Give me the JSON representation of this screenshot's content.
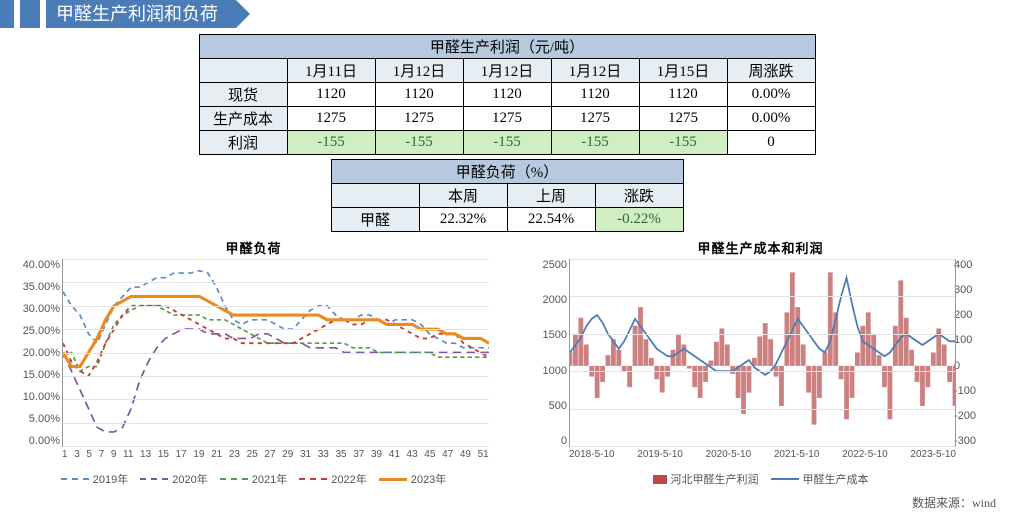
{
  "banner": {
    "title": "甲醛生产利润和负荷"
  },
  "table_profit": {
    "title": "甲醛生产利润（元/吨）",
    "date_headers": [
      "1月11日",
      "1月12日",
      "1月12日",
      "1月12日",
      "1月15日",
      "周涨跌"
    ],
    "rows": [
      {
        "label": "现货",
        "cells": [
          "1120",
          "1120",
          "1120",
          "1120",
          "1120",
          "0.00%"
        ],
        "green": [
          false,
          false,
          false,
          false,
          false,
          false
        ]
      },
      {
        "label": "生产成本",
        "cells": [
          "1275",
          "1275",
          "1275",
          "1275",
          "1275",
          "0.00%"
        ],
        "green": [
          false,
          false,
          false,
          false,
          false,
          false
        ]
      },
      {
        "label": "利润",
        "cells": [
          "-155",
          "-155",
          "-155",
          "-155",
          "-155",
          "0"
        ],
        "green": [
          true,
          true,
          true,
          true,
          true,
          false
        ]
      }
    ]
  },
  "table_load": {
    "title": "甲醛负荷（%）",
    "col_headers": [
      "本周",
      "上周",
      "涨跌"
    ],
    "row": {
      "label": "甲醛",
      "cells": [
        "22.32%",
        "22.54%",
        "-0.22%"
      ],
      "green": [
        false,
        false,
        true
      ]
    }
  },
  "chart_load": {
    "title": "甲醛负荷",
    "type": "line",
    "y_ticks_pct": [
      40,
      35,
      30,
      25,
      20,
      15,
      10,
      5,
      0
    ],
    "x_ticks": [
      "1",
      "3",
      "5",
      "7",
      "9",
      "11",
      "13",
      "15",
      "17",
      "19",
      "21",
      "23",
      "25",
      "27",
      "29",
      "31",
      "33",
      "35",
      "37",
      "39",
      "41",
      "43",
      "45",
      "47",
      "49",
      "51"
    ],
    "ylim": [
      0,
      40
    ],
    "xlim": [
      1,
      51
    ],
    "grid_color": "#e4e4e4",
    "background_color": "#ffffff",
    "line_width_normal": 1.6,
    "line_width_bold": 3,
    "legend_labels": [
      "2019年",
      "2020年",
      "2021年",
      "2022年",
      "2023年"
    ],
    "series": [
      {
        "name": "2019年",
        "color": "#5a8ac6",
        "dash": "5,4",
        "width": 1.6,
        "y": [
          33,
          30,
          28,
          24,
          22,
          26,
          30,
          32,
          34,
          34,
          35,
          36,
          36,
          37,
          37,
          37,
          37.5,
          37,
          34,
          30,
          27,
          26,
          27,
          27,
          27,
          26,
          25,
          25,
          27,
          29,
          30,
          30,
          28,
          27,
          27,
          28,
          28,
          27,
          26,
          27,
          27,
          27,
          26,
          24,
          23,
          22,
          22,
          21,
          21,
          21,
          21
        ]
      },
      {
        "name": "2020年",
        "color": "#7a56a0",
        "dash": "8,5",
        "width": 1.6,
        "y": [
          20,
          16,
          12,
          8,
          4,
          3,
          3,
          4,
          8,
          14,
          18,
          21,
          23,
          24,
          25,
          25,
          25,
          24,
          24,
          24,
          23,
          23,
          23,
          24,
          24,
          23,
          22,
          22,
          22,
          21,
          21,
          21,
          21,
          20,
          20,
          20,
          20,
          20,
          20,
          20,
          20,
          20,
          20,
          20,
          20,
          20,
          20,
          20,
          20,
          20,
          20
        ]
      },
      {
        "name": "2021年",
        "color": "#4f9b4f",
        "dash": "4,3",
        "width": 1.6,
        "y": [
          19,
          20,
          16,
          17,
          17,
          22,
          26,
          28,
          29,
          30,
          30,
          30,
          29,
          28,
          28,
          28,
          28,
          27,
          27,
          27,
          26,
          25,
          24,
          23,
          22,
          22,
          22,
          22,
          22,
          22,
          22,
          22,
          22,
          22,
          21,
          21,
          21,
          20,
          20,
          20,
          20,
          20,
          20,
          20,
          19,
          19,
          19,
          19,
          19,
          19,
          19
        ]
      },
      {
        "name": "2022年",
        "color": "#cc3b3b",
        "dash": "4,4",
        "width": 1.8,
        "y": [
          22,
          18,
          16,
          15,
          18,
          22,
          25,
          28,
          30,
          30,
          30,
          30,
          30,
          29,
          28,
          27,
          26,
          25,
          24,
          23,
          23,
          22,
          22,
          22,
          22,
          22,
          22,
          22,
          23,
          24,
          25,
          26,
          27,
          27,
          26,
          26,
          27,
          27,
          27,
          26,
          25,
          24,
          23,
          23,
          24,
          24,
          24,
          22,
          21,
          20,
          19
        ]
      },
      {
        "name": "2023年",
        "color": "#ec8a22",
        "dash": "",
        "width": 3,
        "y": [
          20,
          17,
          17,
          20,
          23,
          27,
          30,
          31,
          32,
          32,
          32,
          32,
          32,
          32,
          32,
          32,
          32,
          31,
          30,
          29,
          28,
          28,
          28,
          28,
          28,
          28,
          28,
          28,
          28,
          28,
          28,
          27,
          27,
          27,
          27,
          27,
          27,
          27,
          26,
          26,
          26,
          26,
          25,
          25,
          25,
          24,
          24,
          23,
          23,
          23,
          22
        ]
      }
    ]
  },
  "chart_cost": {
    "title": "甲醛生产成本和利润",
    "type": "combo",
    "y_left_ticks": [
      2500,
      2000,
      1500,
      1000,
      500,
      0
    ],
    "y_right_ticks": [
      400,
      300,
      200,
      100,
      0,
      -100,
      -200,
      -300
    ],
    "ylim_left": [
      0,
      2500
    ],
    "ylim_right": [
      -300,
      400
    ],
    "x_ticks": [
      "2018-5-10",
      "2019-5-10",
      "2020-5-10",
      "2021-5-10",
      "2022-5-10",
      "2023-5-10"
    ],
    "n_points": 72,
    "grid_color": "#e4e4e4",
    "background_color": "#ffffff",
    "legend": [
      {
        "label": "河北甲醛生产利润",
        "type": "block",
        "color": "#b84a4a"
      },
      {
        "label": "甲醛生产成本",
        "type": "line",
        "color": "#4a7cb8"
      }
    ],
    "cost_line": {
      "color": "#4a7cb8",
      "width": 1.8,
      "y": [
        1250,
        1350,
        1450,
        1600,
        1700,
        1750,
        1650,
        1500,
        1400,
        1300,
        1400,
        1550,
        1700,
        1600,
        1500,
        1400,
        1300,
        1250,
        1200,
        1200,
        1250,
        1300,
        1250,
        1200,
        1150,
        1100,
        1050,
        1000,
        1000,
        1000,
        1000,
        1050,
        1100,
        1150,
        1050,
        1000,
        950,
        1000,
        1100,
        1250,
        1400,
        1550,
        1700,
        1600,
        1500,
        1400,
        1300,
        1250,
        1400,
        1700,
        2000,
        2250,
        1900,
        1600,
        1400,
        1350,
        1300,
        1250,
        1200,
        1250,
        1350,
        1450,
        1500,
        1450,
        1400,
        1350,
        1400,
        1450,
        1500,
        1450,
        1400,
        1400
      ]
    },
    "profit_bars": {
      "color": "#b84a4a",
      "opacity": 0.7,
      "y": [
        50,
        120,
        180,
        80,
        -40,
        -120,
        -60,
        40,
        100,
        60,
        -20,
        -80,
        150,
        220,
        100,
        30,
        -50,
        -100,
        -40,
        60,
        120,
        80,
        -10,
        -80,
        -120,
        -60,
        20,
        90,
        140,
        80,
        -30,
        -120,
        -180,
        -100,
        30,
        110,
        160,
        100,
        -40,
        -150,
        200,
        350,
        220,
        80,
        -100,
        -220,
        -120,
        50,
        350,
        200,
        -50,
        -200,
        -120,
        50,
        150,
        200,
        120,
        40,
        -80,
        -200,
        150,
        320,
        180,
        60,
        -60,
        -150,
        -80,
        50,
        140,
        80,
        -60,
        -150
      ]
    }
  },
  "source_label": "数据来源：wind"
}
